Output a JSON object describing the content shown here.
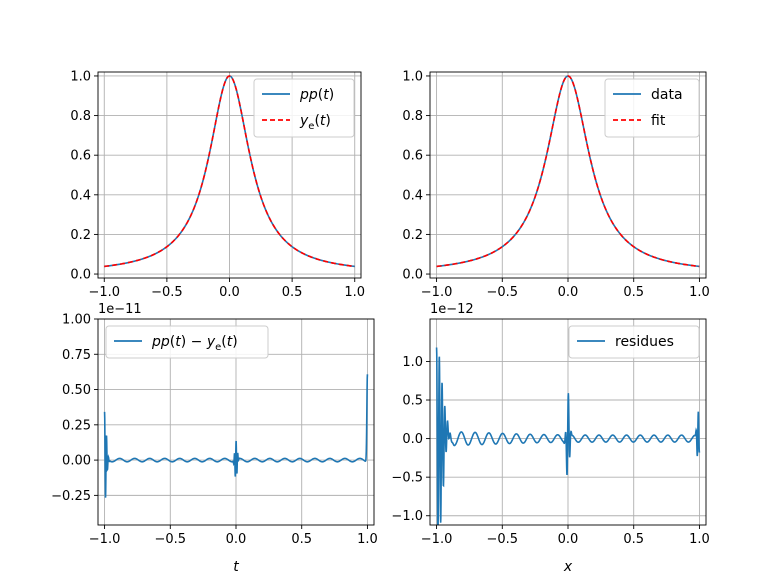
{
  "figure": {
    "background": "#ffffff",
    "colors": {
      "blue": "#1f77b4",
      "red": "#ff0000",
      "grid": "#b0b0b0"
    }
  },
  "chart_data": [
    {
      "type": "line",
      "title": "",
      "xlabel": "",
      "ylabel": "",
      "xlim": [
        -1.05,
        1.05
      ],
      "ylim": [
        -0.02,
        1.02
      ],
      "xticks": [
        -1.0,
        -0.5,
        0.0,
        0.5,
        1.0
      ],
      "xtick_labels": [
        "−1.0",
        "−0.5",
        "0.0",
        "0.5",
        "1.0"
      ],
      "yticks": [
        0.0,
        0.2,
        0.4,
        0.6,
        0.8,
        1.0
      ],
      "ytick_labels": [
        "0.0",
        "0.2",
        "0.4",
        "0.6",
        "0.8",
        "1.0"
      ],
      "offset_label": "",
      "grid": true,
      "legend": "upper right",
      "series": [
        {
          "name": "pp(t)",
          "color": "#1f77b4",
          "style": "solid",
          "function": "runge"
        },
        {
          "name": "y_e(t)",
          "color": "#ff0000",
          "style": "dashed",
          "function": "runge"
        }
      ]
    },
    {
      "type": "line",
      "title": "",
      "xlabel": "",
      "ylabel": "",
      "xlim": [
        -1.05,
        1.05
      ],
      "ylim": [
        -0.02,
        1.02
      ],
      "xticks": [
        -1.0,
        -0.5,
        0.0,
        0.5,
        1.0
      ],
      "xtick_labels": [
        "−1.0",
        "−0.5",
        "0.0",
        "0.5",
        "1.0"
      ],
      "yticks": [
        0.0,
        0.2,
        0.4,
        0.6,
        0.8,
        1.0
      ],
      "ytick_labels": [
        "0.0",
        "0.2",
        "0.4",
        "0.6",
        "0.8",
        "1.0"
      ],
      "offset_label": "",
      "grid": true,
      "legend": "upper right",
      "series": [
        {
          "name": "data",
          "color": "#1f77b4",
          "style": "solid",
          "function": "runge"
        },
        {
          "name": "fit",
          "color": "#ff0000",
          "style": "dashed",
          "function": "runge"
        }
      ]
    },
    {
      "type": "line",
      "title": "",
      "xlabel": "t",
      "ylabel": "",
      "xlim": [
        -1.05,
        1.05
      ],
      "ylim": [
        -0.46,
        1.0
      ],
      "xticks": [
        -1.0,
        -0.5,
        0.0,
        0.5,
        1.0
      ],
      "xtick_labels": [
        "−1.0",
        "−0.5",
        "0.0",
        "0.5",
        "1.0"
      ],
      "yticks": [
        -0.25,
        0.0,
        0.25,
        0.5,
        0.75,
        1.0
      ],
      "ytick_labels": [
        "−0.25",
        "0.00",
        "0.25",
        "0.50",
        "0.75",
        "1.00"
      ],
      "offset_label": "1e−11",
      "grid": true,
      "legend": "upper left",
      "series": [
        {
          "name": "pp(t) − y_e(t)",
          "color": "#1f77b4",
          "style": "solid",
          "function": "residual_a"
        }
      ]
    },
    {
      "type": "line",
      "title": "",
      "xlabel": "x",
      "ylabel": "",
      "xlim": [
        -1.05,
        1.05
      ],
      "ylim": [
        -1.12,
        1.55
      ],
      "xticks": [
        -1.0,
        -0.5,
        0.0,
        0.5,
        1.0
      ],
      "xtick_labels": [
        "−1.0",
        "−0.5",
        "0.0",
        "0.5",
        "1.0"
      ],
      "yticks": [
        -1.0,
        -0.5,
        0.0,
        0.5,
        1.0
      ],
      "ytick_labels": [
        "−1.0",
        "−0.5",
        "0.0",
        "0.5",
        "1.0"
      ],
      "offset_label": "1e−12",
      "grid": true,
      "legend": "upper right",
      "series": [
        {
          "name": "residues",
          "color": "#1f77b4",
          "style": "solid",
          "function": "residual_b"
        }
      ]
    }
  ]
}
